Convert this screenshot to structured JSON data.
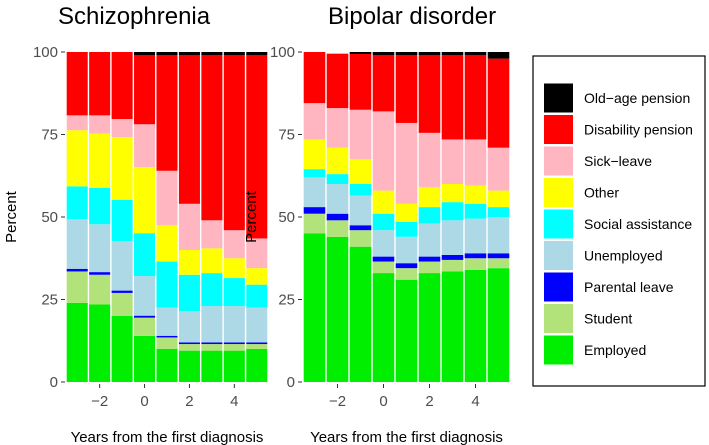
{
  "chart_data": {
    "type": "bar",
    "stacked": true,
    "layout": "faceted",
    "shared_y_label": "Percent",
    "ylim": [
      0,
      100
    ],
    "yticks": [
      0,
      25,
      50,
      75,
      100
    ],
    "categories": [
      -3,
      -2,
      -1,
      0,
      1,
      2,
      3,
      4,
      5
    ],
    "xticks": [
      "-2",
      "0",
      "2",
      "4"
    ],
    "xtick_values": [
      -2,
      0,
      2,
      4
    ],
    "legend": {
      "position": "right",
      "entries": [
        {
          "name": "Old−age pension",
          "color": "#000000"
        },
        {
          "name": "Disability pension",
          "color": "#ff0000"
        },
        {
          "name": "Sick−leave",
          "color": "#ffb6c1"
        },
        {
          "name": "Other",
          "color": "#ffff00"
        },
        {
          "name": "Social assistance",
          "color": "#00ffff"
        },
        {
          "name": "Unemployed",
          "color": "#add8e6"
        },
        {
          "name": "Parental leave",
          "color": "#0000ff"
        },
        {
          "name": "Student",
          "color": "#b2e37a"
        },
        {
          "name": "Employed",
          "color": "#00ee00"
        }
      ]
    },
    "panels": [
      {
        "title": "Schizophrenia",
        "xlabel": "Years from the first diagnosis",
        "series": [
          {
            "name": "Employed",
            "values": [
              24,
              23.5,
              20,
              14,
              10,
              9.5,
              9.5,
              9.5,
              10
            ]
          },
          {
            "name": "Student",
            "values": [
              9.5,
              9,
              7,
              5.5,
              3.5,
              2,
              2,
              2,
              1.5
            ]
          },
          {
            "name": "Parental leave",
            "values": [
              0.8,
              0.8,
              0.7,
              0.6,
              0.5,
              0.5,
              0.5,
              0.5,
              0.5
            ]
          },
          {
            "name": "Unemployed",
            "values": [
              15,
              14.5,
              15,
              12,
              8.5,
              9.5,
              11,
              11,
              10.5
            ]
          },
          {
            "name": "Social assistance",
            "values": [
              10,
              11,
              12.5,
              13,
              14,
              11,
              10,
              8.5,
              7
            ]
          },
          {
            "name": "Other",
            "values": [
              17,
              16.5,
              19,
              20,
              11,
              7.5,
              7.5,
              6,
              5
            ]
          },
          {
            "name": "Sick−leave",
            "values": [
              4.5,
              5.5,
              5.5,
              13,
              16.5,
              14,
              8.5,
              8.5,
              9
            ]
          },
          {
            "name": "Disability pension",
            "values": [
              19.2,
              19.2,
              20.3,
              20.9,
              35,
              45,
              50,
              53,
              55.5
            ]
          },
          {
            "name": "Old−age pension",
            "values": [
              0,
              0,
              0,
              1,
              1,
              1,
              1,
              1,
              1
            ]
          }
        ]
      },
      {
        "title": "Bipolar disorder",
        "xlabel": "Years from the first diagnosis",
        "series": [
          {
            "name": "Employed",
            "values": [
              45,
              44,
              41,
              33,
              31,
              33,
              33.5,
              34,
              34.5
            ]
          },
          {
            "name": "Student",
            "values": [
              6,
              5,
              5,
              3.5,
              3.5,
              3.5,
              3.5,
              3.5,
              3
            ]
          },
          {
            "name": "Parental leave",
            "values": [
              2,
              2,
              1.5,
              1.5,
              1.5,
              1.5,
              1.5,
              1.5,
              1.5
            ]
          },
          {
            "name": "Unemployed",
            "values": [
              9,
              9,
              9,
              8,
              8,
              10,
              10.5,
              10.5,
              11
            ]
          },
          {
            "name": "Social assistance",
            "values": [
              2.5,
              3,
              3.5,
              5,
              4.5,
              5,
              5.5,
              4.5,
              3
            ]
          },
          {
            "name": "Other",
            "values": [
              9,
              8,
              7.5,
              7,
              5.5,
              6,
              5.5,
              5.5,
              5
            ]
          },
          {
            "name": "Sick−leave",
            "values": [
              11,
              12,
              15,
              24,
              24.5,
              16.5,
              13.5,
              14,
              13
            ]
          },
          {
            "name": "Disability pension",
            "values": [
              15.5,
              16.5,
              16.9,
              17,
              20.5,
              23.5,
              25.5,
              25.5,
              27
            ]
          },
          {
            "name": "Old−age pension",
            "values": [
              0,
              0,
              0.6,
              1,
              1,
              1,
              1,
              1,
              2
            ]
          }
        ]
      }
    ]
  }
}
